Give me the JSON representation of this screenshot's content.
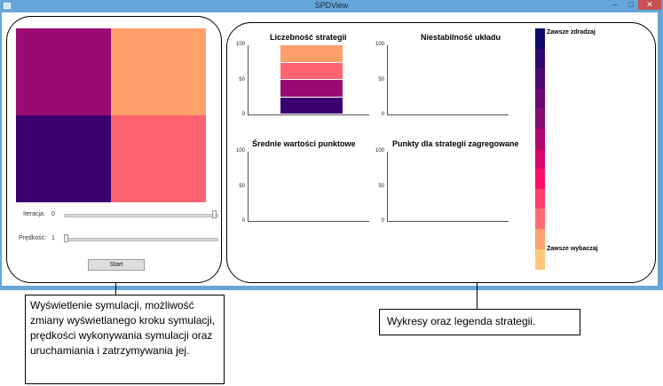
{
  "window": {
    "title": "SPDView",
    "app_icon": "window-icon",
    "controls": {
      "minimize": "–",
      "maximize": "□",
      "close": "✕"
    }
  },
  "simulation": {
    "grid_colors": [
      "#9a0b72",
      "#ff9f6b",
      "#3b0070",
      "#ff6470"
    ],
    "iteration": {
      "label": "Iteracja:",
      "value": "0",
      "fraction": 1.0
    },
    "speed": {
      "label": "Prędkość:",
      "value": "1",
      "fraction": 0.0
    },
    "start_label": "Start"
  },
  "charts": [
    {
      "title": "Liczebność strategii",
      "yticks": [
        "100",
        "50",
        "0"
      ],
      "ylim": [
        0,
        100
      ]
    },
    {
      "title": "Niestabilność układu",
      "yticks": [
        "100",
        "50",
        "0"
      ],
      "ylim": [
        0,
        100
      ]
    },
    {
      "title": "Średnie wartości punktowe",
      "yticks": [
        "100",
        "50",
        "0"
      ],
      "ylim": [
        0,
        100
      ]
    },
    {
      "title": "Punkty dla strategii zagregowane",
      "yticks": [
        "100",
        "50",
        "0"
      ],
      "ylim": [
        0,
        100
      ]
    }
  ],
  "chart_data": {
    "type": "bar",
    "title": "Liczebność strategii",
    "ylim": [
      0,
      100
    ],
    "stack": [
      {
        "color": "#3b0070",
        "value": 25
      },
      {
        "color": "#9a0b72",
        "value": 25
      },
      {
        "color": "#ff6470",
        "value": 25
      },
      {
        "color": "#ff9f6b",
        "value": 25
      }
    ]
  },
  "legend": {
    "top_label": "Zawsze zdradzaj",
    "bottom_label": "Zawsze wybaczaj",
    "colors": [
      "#0d0c6d",
      "#2e0a6e",
      "#4b0a73",
      "#6a0a75",
      "#8a0b73",
      "#b00a70",
      "#d9066c",
      "#ff0e6c",
      "#ff3f6e",
      "#ff6a72",
      "#ff9f6b",
      "#ffc879"
    ]
  },
  "callouts": {
    "left": "Wyświetlenie symulacji, możliwość zmiany wyświetlanego kroku symulacji, prędkości wykonywania symulacji oraz uruchamiania i zatrzymywania jej.",
    "right": "Wykresy oraz legenda strategii."
  }
}
